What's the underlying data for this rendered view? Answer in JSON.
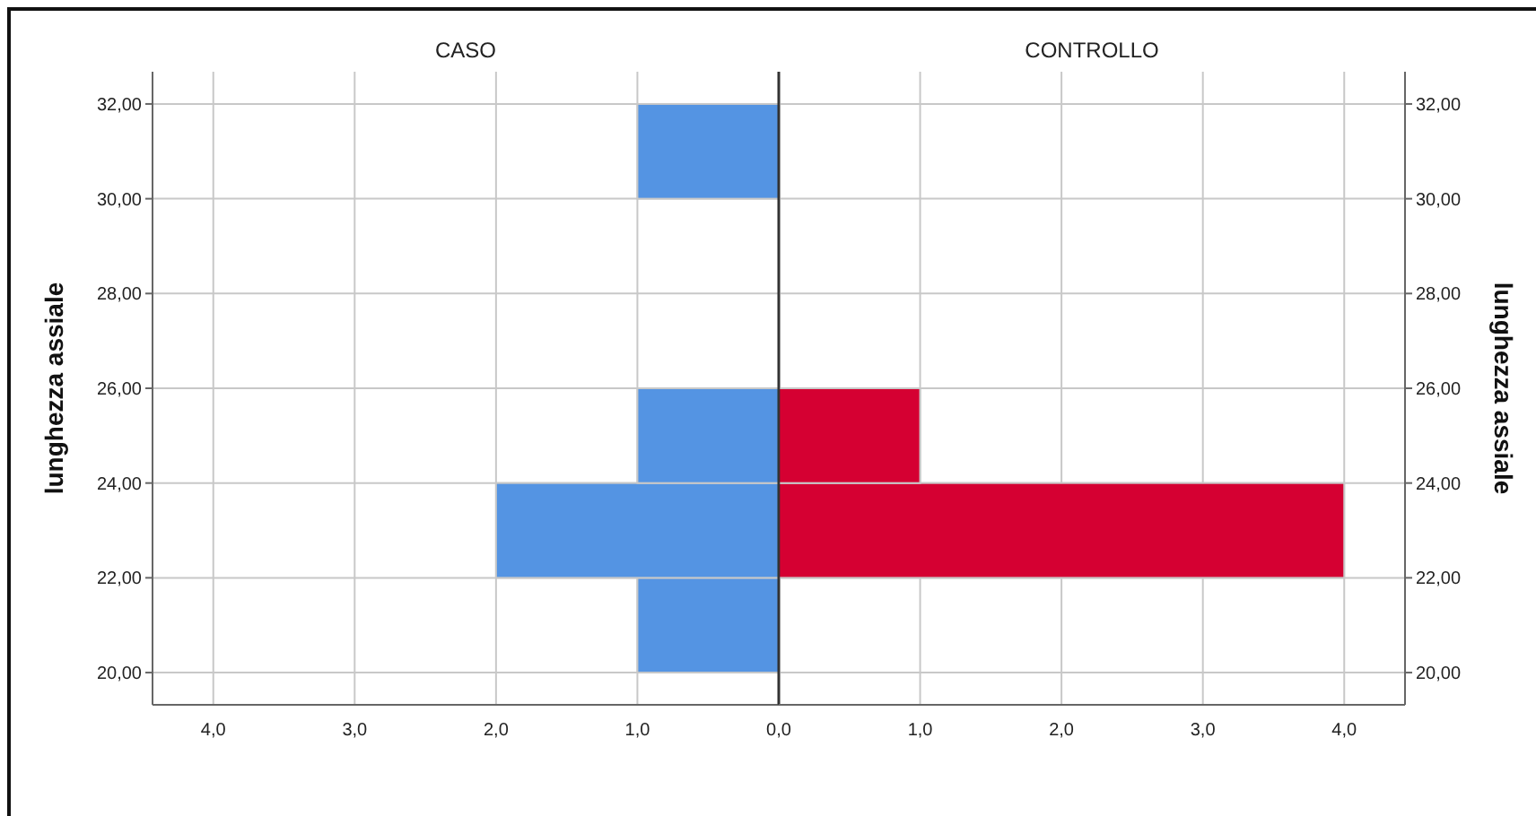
{
  "chart_data": [
    {
      "type": "histogram",
      "orientation": "horizontal",
      "title": "CASO",
      "ylabel": "lunghezza assiale",
      "bins": [
        20,
        22,
        24,
        26,
        28,
        30,
        32
      ],
      "values": [
        1,
        2,
        1,
        0,
        0,
        1
      ],
      "color": "#5494e3",
      "xlim": [
        4.43,
        0
      ],
      "xticks": [
        {
          "value": 4,
          "label": "4,0"
        },
        {
          "value": 3,
          "label": "3,0"
        },
        {
          "value": 2,
          "label": "2,0"
        },
        {
          "value": 1,
          "label": "1,0"
        },
        {
          "value": 0,
          "label": null
        }
      ],
      "ylim": [
        19.32,
        32.68
      ],
      "yticks": [
        {
          "value": 20,
          "label": "20,00"
        },
        {
          "value": 22,
          "label": "22,00"
        },
        {
          "value": 24,
          "label": "24,00"
        },
        {
          "value": 26,
          "label": "26,00"
        },
        {
          "value": 28,
          "label": "28,00"
        },
        {
          "value": 30,
          "label": "30,00"
        },
        {
          "value": 32,
          "label": "32,00"
        }
      ],
      "grid": true
    },
    {
      "type": "histogram",
      "orientation": "horizontal",
      "title": "CONTROLLO",
      "ylabel": "lunghezza assiale",
      "bins": [
        20,
        22,
        24,
        26,
        28,
        30,
        32
      ],
      "values": [
        0,
        4,
        1,
        0,
        0,
        0
      ],
      "color": "#d50032",
      "xlim": [
        0,
        4.43
      ],
      "xticks": [
        {
          "value": 0,
          "label": "0,0"
        },
        {
          "value": 1,
          "label": "1,0"
        },
        {
          "value": 2,
          "label": "2,0"
        },
        {
          "value": 3,
          "label": "3,0"
        },
        {
          "value": 4,
          "label": "4,0"
        }
      ],
      "ylim": [
        19.32,
        32.68
      ],
      "yticks": [
        {
          "value": 20,
          "label": "20,00"
        },
        {
          "value": 22,
          "label": "22,00"
        },
        {
          "value": 24,
          "label": "24,00"
        },
        {
          "value": 26,
          "label": "26,00"
        },
        {
          "value": 28,
          "label": "28,00"
        },
        {
          "value": 30,
          "label": "30,00"
        },
        {
          "value": 32,
          "label": "32,00"
        }
      ],
      "grid": true
    }
  ]
}
